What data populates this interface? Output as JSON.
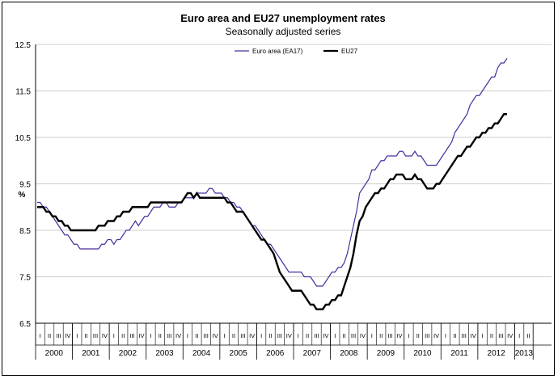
{
  "chart_data": {
    "type": "line",
    "title": "Euro area and EU27 unemployment rates",
    "subtitle": "Seasonally adjusted series",
    "ylabel": "%",
    "ylim": [
      6.5,
      12.5
    ],
    "yticks": [
      "12.5",
      "11.5",
      "10.5",
      "9.5",
      "8.5",
      "7.5",
      "6.5"
    ],
    "grid": "horizontal",
    "legend_position": "top",
    "quarter_labels": [
      "I",
      "II",
      "III",
      "IV"
    ],
    "years": [
      "2000",
      "2001",
      "2002",
      "2003",
      "2004",
      "2005",
      "2006",
      "2007",
      "2008",
      "2009",
      "2010",
      "2011",
      "2012",
      "2013"
    ],
    "start": "2000-01",
    "end": "2013-04",
    "series": [
      {
        "name": "Euro area (EA17)",
        "color": "#4b2e9e",
        "values": [
          9.1,
          9.1,
          9.0,
          9.0,
          8.9,
          8.8,
          8.7,
          8.6,
          8.5,
          8.4,
          8.4,
          8.3,
          8.2,
          8.2,
          8.1,
          8.1,
          8.1,
          8.1,
          8.1,
          8.1,
          8.1,
          8.2,
          8.2,
          8.3,
          8.3,
          8.2,
          8.3,
          8.3,
          8.4,
          8.5,
          8.5,
          8.6,
          8.7,
          8.6,
          8.7,
          8.8,
          8.8,
          8.9,
          9.0,
          9.0,
          9.0,
          9.1,
          9.1,
          9.0,
          9.0,
          9.0,
          9.1,
          9.1,
          9.2,
          9.2,
          9.2,
          9.2,
          9.3,
          9.3,
          9.3,
          9.3,
          9.4,
          9.4,
          9.3,
          9.3,
          9.3,
          9.2,
          9.2,
          9.1,
          9.1,
          9.0,
          9.0,
          8.9,
          8.8,
          8.7,
          8.6,
          8.6,
          8.5,
          8.4,
          8.3,
          8.2,
          8.2,
          8.1,
          8.0,
          7.9,
          7.8,
          7.7,
          7.6,
          7.6,
          7.6,
          7.6,
          7.6,
          7.5,
          7.5,
          7.5,
          7.4,
          7.3,
          7.3,
          7.3,
          7.4,
          7.5,
          7.6,
          7.6,
          7.7,
          7.7,
          7.8,
          8.0,
          8.3,
          8.6,
          8.9,
          9.3,
          9.4,
          9.5,
          9.6,
          9.8,
          9.8,
          9.9,
          10.0,
          10.0,
          10.1,
          10.1,
          10.1,
          10.1,
          10.2,
          10.2,
          10.1,
          10.1,
          10.1,
          10.2,
          10.1,
          10.1,
          10.0,
          9.9,
          9.9,
          9.9,
          9.9,
          10.0,
          10.1,
          10.2,
          10.3,
          10.4,
          10.6,
          10.7,
          10.8,
          10.9,
          11.0,
          11.2,
          11.3,
          11.4,
          11.4,
          11.5,
          11.6,
          11.7,
          11.8,
          11.8,
          12.0,
          12.1,
          12.1,
          12.2
        ]
      },
      {
        "name": "EU27",
        "color": "#000000",
        "values": [
          9.0,
          9.0,
          9.0,
          8.9,
          8.9,
          8.8,
          8.8,
          8.7,
          8.7,
          8.6,
          8.6,
          8.5,
          8.5,
          8.5,
          8.5,
          8.5,
          8.5,
          8.5,
          8.5,
          8.5,
          8.6,
          8.6,
          8.6,
          8.7,
          8.7,
          8.7,
          8.8,
          8.8,
          8.9,
          8.9,
          8.9,
          9.0,
          9.0,
          9.0,
          9.0,
          9.0,
          9.0,
          9.1,
          9.1,
          9.1,
          9.1,
          9.1,
          9.1,
          9.1,
          9.1,
          9.1,
          9.1,
          9.1,
          9.2,
          9.3,
          9.3,
          9.2,
          9.3,
          9.2,
          9.2,
          9.2,
          9.2,
          9.2,
          9.2,
          9.2,
          9.2,
          9.2,
          9.1,
          9.1,
          9.0,
          8.9,
          8.9,
          8.9,
          8.8,
          8.7,
          8.6,
          8.5,
          8.4,
          8.3,
          8.3,
          8.2,
          8.1,
          8.0,
          7.8,
          7.6,
          7.5,
          7.4,
          7.3,
          7.2,
          7.2,
          7.2,
          7.2,
          7.1,
          7.0,
          6.9,
          6.9,
          6.8,
          6.8,
          6.8,
          6.9,
          6.9,
          7.0,
          7.0,
          7.1,
          7.1,
          7.3,
          7.5,
          7.7,
          8.0,
          8.4,
          8.7,
          8.8,
          9.0,
          9.1,
          9.2,
          9.3,
          9.3,
          9.4,
          9.4,
          9.5,
          9.6,
          9.6,
          9.7,
          9.7,
          9.7,
          9.6,
          9.6,
          9.6,
          9.7,
          9.6,
          9.6,
          9.5,
          9.4,
          9.4,
          9.4,
          9.5,
          9.5,
          9.6,
          9.7,
          9.8,
          9.9,
          10.0,
          10.1,
          10.1,
          10.2,
          10.3,
          10.3,
          10.4,
          10.5,
          10.5,
          10.6,
          10.6,
          10.7,
          10.7,
          10.8,
          10.8,
          10.9,
          11.0,
          11.0
        ]
      }
    ]
  }
}
